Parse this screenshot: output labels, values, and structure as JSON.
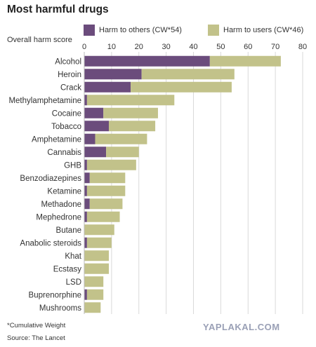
{
  "title": "Most harmful drugs",
  "ylabel": "Overall harm score",
  "legend": [
    {
      "label": "Harm to others (CW*54)",
      "color": "#6b4c7c"
    },
    {
      "label": "Harm to users (CW*46)",
      "color": "#c2c28a"
    }
  ],
  "footnote": "*Cumulative Weight",
  "source": "Source: The Lancet",
  "watermark": "YAPLAKAL.COM",
  "chart_data": {
    "type": "bar",
    "orientation": "horizontal",
    "stacked": true,
    "title": "Most harmful drugs",
    "xlabel": "Overall harm score",
    "xlim": [
      0,
      80
    ],
    "xticks": [
      0,
      10,
      20,
      30,
      40,
      50,
      60,
      70,
      80
    ],
    "grid": true,
    "legend_position": "top",
    "categories": [
      "Alcohol",
      "Heroin",
      "Crack",
      "Methylamphetamine",
      "Cocaine",
      "Tobacco",
      "Amphetamine",
      "Cannabis",
      "GHB",
      "Benzodiazepines",
      "Ketamine",
      "Methadone",
      "Mephedrone",
      "Butane",
      "Anabolic steroids",
      "Khat",
      "Ecstasy",
      "LSD",
      "Buprenorphine",
      "Mushrooms"
    ],
    "series": [
      {
        "name": "Harm to others (CW*54)",
        "color": "#6b4c7c",
        "values": [
          46,
          21,
          17,
          1,
          7,
          9,
          4,
          8,
          1,
          2,
          1,
          2,
          1,
          0,
          1,
          0,
          0,
          0,
          1,
          0
        ]
      },
      {
        "name": "Harm to users (CW*46)",
        "color": "#c2c28a",
        "values": [
          26,
          34,
          37,
          32,
          20,
          17,
          19,
          12,
          18,
          13,
          14,
          12,
          12,
          11,
          9,
          9,
          9,
          7,
          6,
          6
        ]
      }
    ]
  }
}
